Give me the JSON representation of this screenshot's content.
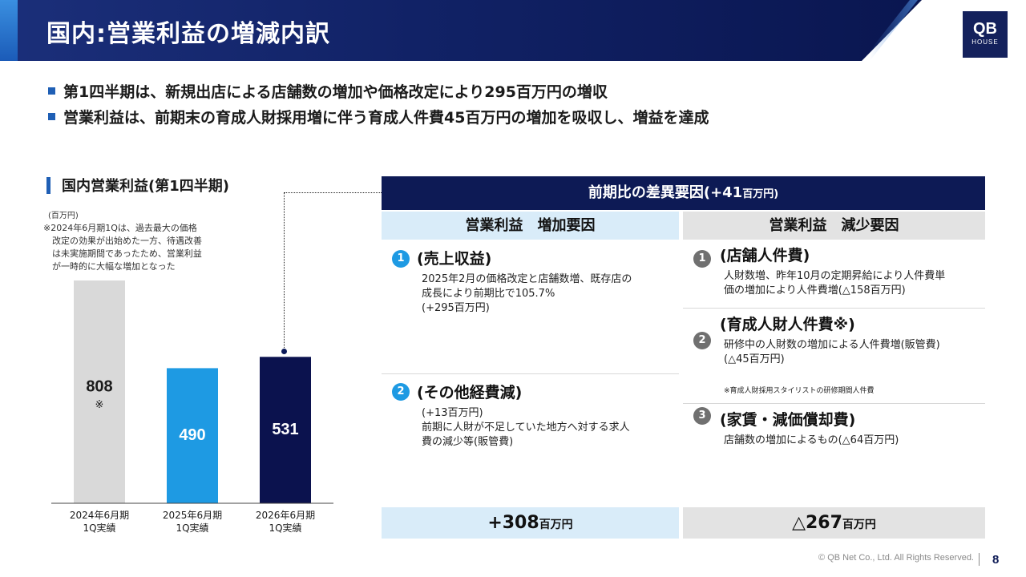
{
  "header": {
    "title": "国内:営業利益の増減内訳",
    "logo_main": "QB",
    "logo_sub": "HOUSE"
  },
  "bullets": [
    "第1四半期は、新規出店による店舗数の増加や価格改定により295百万円の増収",
    "営業利益は、前期末の育成人財採用増に伴う育成人件費45百万円の増加を吸収し、増益を達成"
  ],
  "chart_section": {
    "heading": "国内営業利益(第1四半期)",
    "unit": "(百万円)",
    "note": "※2024年6月期1Qは、過去最大の価格\n　改定の効果が出始めた一方、待遇改善\n　は未実施期間であったため、営業利益\n　が一時的に大幅な増加となった"
  },
  "chart_data": {
    "type": "bar",
    "title": "国内営業利益(第1四半期)",
    "unit": "(百万円)",
    "categories": [
      "2024年6月期\n1Q実績",
      "2025年6月期\n1Q実績",
      "2026年6月期\n1Q実績"
    ],
    "category_lines": [
      [
        "2024年6月期",
        "1Q実績"
      ],
      [
        "2025年6月期",
        "1Q実績"
      ],
      [
        "2026年6月期",
        "1Q実績"
      ]
    ],
    "values": [
      808,
      490,
      531
    ],
    "value_notes": [
      "※",
      "",
      ""
    ],
    "colors": [
      "#d9d9d9",
      "#1e9ae3",
      "#0b124e"
    ],
    "label_colors": [
      "#1a1a1a",
      "#ffffff",
      "#ffffff"
    ],
    "ylim": [
      0,
      808
    ],
    "grid": false,
    "legend": "none"
  },
  "panel": {
    "title": "前期比の差異要因",
    "title_value": "(+41",
    "title_unit": "百万円)",
    "increase_header": "営業利益　増加要因",
    "decrease_header": "営業利益　減少要因",
    "increase_items": [
      {
        "num": "1",
        "title": "(売上収益)",
        "body": "2025年2月の価格改定と店舗数増、既存店の\n成長により前期比で105.7%\n(+295百万円)"
      },
      {
        "num": "2",
        "title": "(その他経費減)",
        "body": "(+13百万円)\n前期に人財が不足していた地方へ対する求人\n費の減少等(販管費)"
      }
    ],
    "decrease_items": [
      {
        "num": "1",
        "title": "(店舗人件費)",
        "body": "人財数増、昨年10月の定期昇給により人件費単\n価の増加により人件費増(△158百万円)"
      },
      {
        "num": "2",
        "title": "(育成人財人件費※)",
        "body": "研修中の人財数の増加による人件費増(販管費)\n(△45百万円)",
        "note": "※育成人財採用スタイリストの研修期間人件費"
      },
      {
        "num": "3",
        "title": "(家賃・減価償却費)",
        "body": "店舗数の増加によるもの(△64百万円)"
      }
    ],
    "increase_total_value": "+308",
    "decrease_total_value": "△267",
    "total_unit": "百万円"
  },
  "footer": {
    "copyright": "© QB Net Co., Ltd. All Rights Reserved.",
    "page": "8"
  }
}
